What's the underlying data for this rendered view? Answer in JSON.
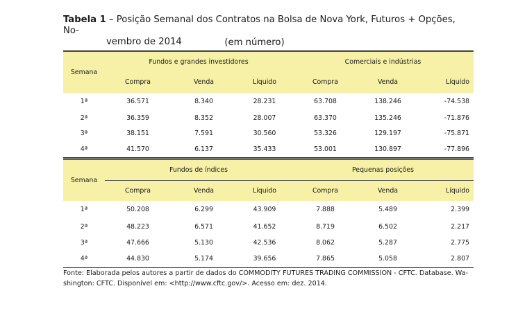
{
  "caption": {
    "label": "Tabela 1",
    "dash": " – ",
    "title_line1": "Posição Semanal dos Contratos na Bolsa de Nova York, Futuros + Opções, No-",
    "title_line2": "vembro de 2014",
    "unit": "(em número)"
  },
  "table1": {
    "semana_header": "Semana",
    "group_left": "Fundos e grandes investidores",
    "group_right": "Comerciais e indústrias",
    "cols": [
      "Compra",
      "Venda",
      "Líquido",
      "Compra",
      "Venda",
      "Líquido"
    ],
    "rows": [
      {
        "semana": "1ª",
        "v": [
          "36.571",
          "8.340",
          "28.231",
          "63.708",
          "138.246",
          "-74.538"
        ]
      },
      {
        "semana": "2ª",
        "v": [
          "36.359",
          "8.352",
          "28.007",
          "63.370",
          "135.246",
          "-71.876"
        ]
      },
      {
        "semana": "3ª",
        "v": [
          "38.151",
          "7.591",
          "30.560",
          "53.326",
          "129.197",
          "-75.871"
        ]
      },
      {
        "semana": "4ª",
        "v": [
          "41.570",
          "6.137",
          "35.433",
          "53.001",
          "130.897",
          "-77.896"
        ]
      }
    ]
  },
  "table2": {
    "semana_header": "Semana",
    "group_left": "Fundos de índices",
    "group_right": "Pequenas posições",
    "cols": [
      "Compra",
      "Venda",
      "Líquido",
      "Compra",
      "Venda",
      "Líquido"
    ],
    "rows": [
      {
        "semana": "1ª",
        "v": [
          "50.208",
          "6.299",
          "43.909",
          "7.888",
          "5.489",
          "2.399"
        ]
      },
      {
        "semana": "2ª",
        "v": [
          "48.223",
          "6.571",
          "41.652",
          "8.719",
          "6.502",
          "2.217"
        ]
      },
      {
        "semana": "3ª",
        "v": [
          "47.666",
          "5.130",
          "42.536",
          "8.062",
          "5.287",
          "2.775"
        ]
      },
      {
        "semana": "4ª",
        "v": [
          "44.830",
          "5.174",
          "39.656",
          "7.865",
          "5.058",
          "2.807"
        ]
      }
    ]
  },
  "footer": {
    "line1": "Fonte: Elaborada pelos autores a partir de dados do COMMODITY FUTURES TRADING COMMISSION - CFTC. Database. Wa-",
    "line2": "shington: CFTC. Disponível em: <http://www.cftc.gov/>. Acesso em: dez. 2014."
  }
}
